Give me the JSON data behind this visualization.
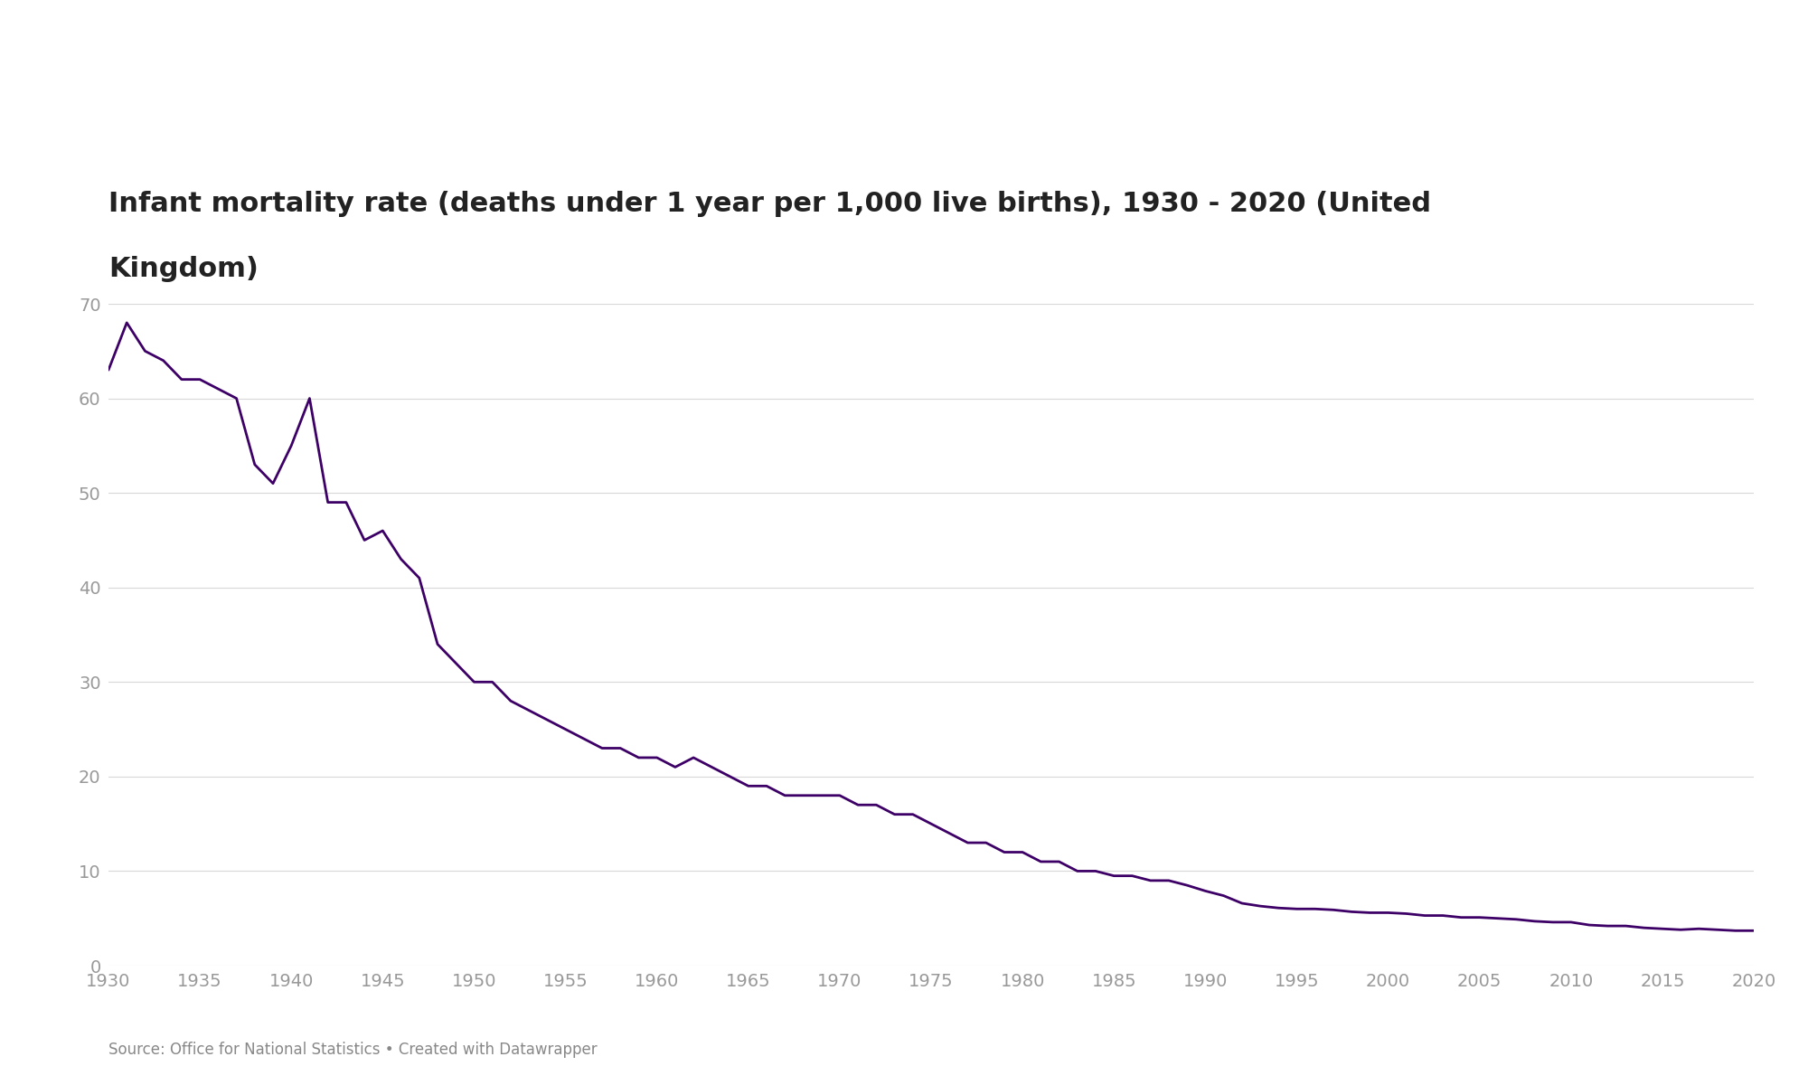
{
  "title_line1": "Infant mortality rate (deaths under 1 year per 1,000 live births), 1930 - 2020 (United",
  "title_line2": "Kingdom)",
  "source_text": "Source: Office for National Statistics • Created with Datawrapper",
  "line_color": "#3d0066",
  "background_color": "#ffffff",
  "grid_color": "#d8d8d8",
  "tick_color": "#999999",
  "title_color": "#222222",
  "years": [
    1930,
    1931,
    1932,
    1933,
    1934,
    1935,
    1936,
    1937,
    1938,
    1939,
    1940,
    1941,
    1942,
    1943,
    1944,
    1945,
    1946,
    1947,
    1948,
    1949,
    1950,
    1951,
    1952,
    1953,
    1954,
    1955,
    1956,
    1957,
    1958,
    1959,
    1960,
    1961,
    1962,
    1963,
    1964,
    1965,
    1966,
    1967,
    1968,
    1969,
    1970,
    1971,
    1972,
    1973,
    1974,
    1975,
    1976,
    1977,
    1978,
    1979,
    1980,
    1981,
    1982,
    1983,
    1984,
    1985,
    1986,
    1987,
    1988,
    1989,
    1990,
    1991,
    1992,
    1993,
    1994,
    1995,
    1996,
    1997,
    1998,
    1999,
    2000,
    2001,
    2002,
    2003,
    2004,
    2005,
    2006,
    2007,
    2008,
    2009,
    2010,
    2011,
    2012,
    2013,
    2014,
    2015,
    2016,
    2017,
    2018,
    2019,
    2020
  ],
  "values": [
    63,
    68,
    65,
    64,
    62,
    62,
    61,
    60,
    53,
    51,
    55,
    60,
    49,
    49,
    45,
    46,
    43,
    41,
    34,
    32,
    30,
    30,
    28,
    27,
    26,
    25,
    24,
    23,
    23,
    22,
    22,
    21,
    22,
    21,
    20,
    19,
    19,
    18,
    18,
    18,
    18,
    17,
    17,
    16,
    16,
    15,
    14,
    13,
    13,
    12,
    12,
    11,
    11,
    10,
    10,
    9.5,
    9.5,
    9,
    9,
    8.5,
    7.9,
    7.4,
    6.6,
    6.3,
    6.1,
    6.0,
    6.0,
    5.9,
    5.7,
    5.6,
    5.6,
    5.5,
    5.3,
    5.3,
    5.1,
    5.1,
    5.0,
    4.9,
    4.7,
    4.6,
    4.6,
    4.3,
    4.2,
    4.2,
    4.0,
    3.9,
    3.8,
    3.9,
    3.8,
    3.7,
    3.7
  ],
  "xlim": [
    1930,
    2020
  ],
  "ylim": [
    0,
    70
  ],
  "xticks": [
    1930,
    1935,
    1940,
    1945,
    1950,
    1955,
    1960,
    1965,
    1970,
    1975,
    1980,
    1985,
    1990,
    1995,
    2000,
    2005,
    2010,
    2015,
    2020
  ],
  "yticks": [
    0,
    10,
    20,
    30,
    40,
    50,
    60,
    70
  ],
  "line_width": 2.0,
  "title_fontsize": 22,
  "tick_fontsize": 14,
  "source_fontsize": 12
}
